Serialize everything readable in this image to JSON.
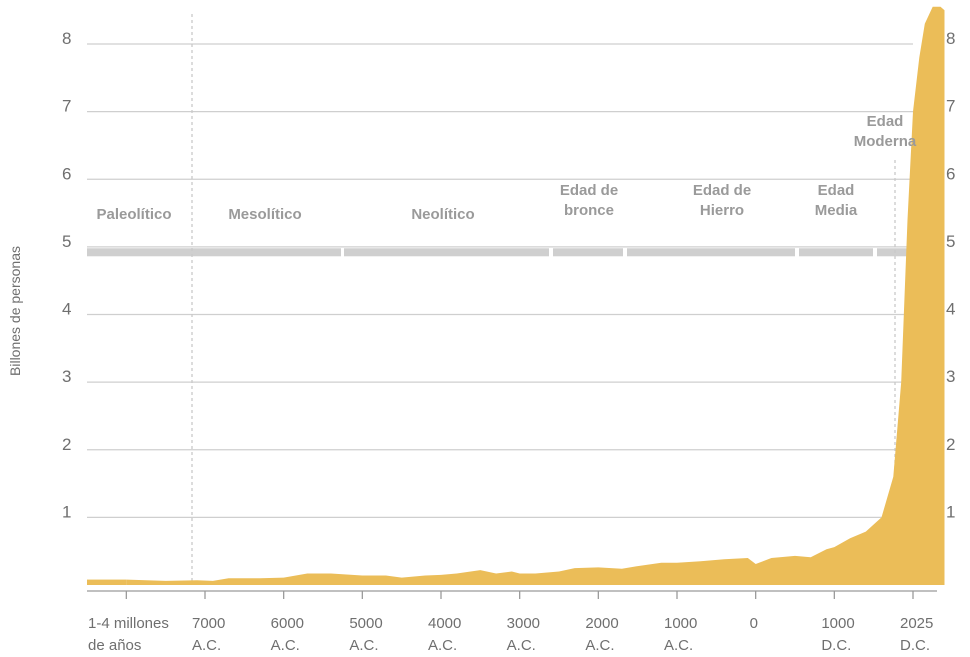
{
  "chart_data": {
    "type": "area",
    "ylabel": "Billones de personas",
    "ylim": [
      0,
      8.5
    ],
    "y_ticks": [
      1,
      2,
      3,
      4,
      5,
      6,
      7,
      8
    ],
    "grid": true,
    "color": "#ebbd58",
    "x_tick_labels": [
      [
        "1-4 millones",
        "de años"
      ],
      [
        "7000",
        "A.C."
      ],
      [
        "6000",
        "A.C."
      ],
      [
        "5000",
        "A.C."
      ],
      [
        "4000",
        "A.C."
      ],
      [
        "3000",
        "A.C."
      ],
      [
        "2000",
        "A.C."
      ],
      [
        "1000",
        "A.C."
      ],
      [
        "0",
        ""
      ],
      [
        "1000",
        "D.C."
      ],
      [
        "2025",
        "D.C."
      ]
    ],
    "eras": [
      [
        "Paleolítico"
      ],
      [
        "Mesolítico"
      ],
      [
        "Neolítico"
      ],
      [
        "Edad de",
        "bronce"
      ],
      [
        "Edad de",
        "Hierro"
      ],
      [
        "Edad",
        "Media"
      ],
      [
        "Edad",
        "Moderna"
      ]
    ],
    "series": [
      {
        "x": [
          0,
          0.5,
          0.9,
          1.1,
          1.3,
          1.5,
          1.7,
          2.0,
          2.3,
          2.6,
          3.0,
          3.3,
          3.5,
          3.8,
          4.0,
          4.2,
          4.5,
          4.7,
          4.9,
          5.0,
          5.2,
          5.5,
          5.7,
          6.0,
          6.3,
          6.5,
          6.8,
          7.0,
          7.3,
          7.6,
          7.9,
          8.0,
          8.2,
          8.5,
          8.7,
          8.9,
          9.0,
          9.2,
          9.4,
          9.6,
          9.75,
          9.85,
          9.93,
          10.0,
          10.08,
          10.15,
          10.25,
          10.35,
          10.4
        ],
        "y": [
          0.08,
          0.06,
          0.07,
          0.06,
          0.1,
          0.1,
          0.1,
          0.11,
          0.17,
          0.17,
          0.14,
          0.14,
          0.11,
          0.14,
          0.15,
          0.17,
          0.22,
          0.17,
          0.2,
          0.17,
          0.17,
          0.2,
          0.25,
          0.26,
          0.24,
          0.28,
          0.33,
          0.33,
          0.35,
          0.38,
          0.4,
          0.31,
          0.4,
          0.43,
          0.41,
          0.53,
          0.56,
          0.69,
          0.79,
          1.0,
          1.6,
          3.0,
          5.4,
          7.0,
          7.8,
          8.3,
          8.55,
          8.55,
          8.5
        ]
      }
    ]
  }
}
